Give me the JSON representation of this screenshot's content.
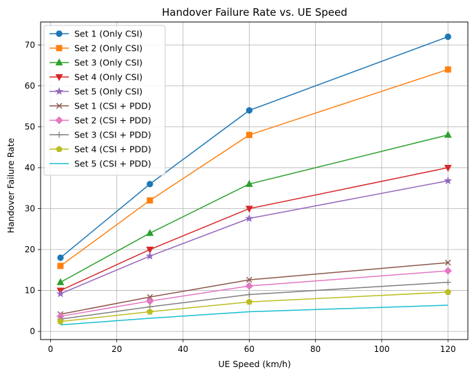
{
  "chart_data": {
    "type": "line",
    "title": "Handover Failure Rate vs. UE Speed",
    "xlabel": "UE Speed (km/h)",
    "ylabel": "Handover Failure Rate",
    "xlim": [
      -3,
      126
    ],
    "ylim": [
      -2,
      75.6
    ],
    "xticks": [
      0,
      20,
      40,
      60,
      80,
      100,
      120
    ],
    "yticks": [
      0,
      10,
      20,
      30,
      40,
      50,
      60,
      70
    ],
    "grid": true,
    "legend_position": "top-left",
    "x": [
      3,
      30,
      60,
      120
    ],
    "series": [
      {
        "name": "Set 1 (Only CSI)",
        "color": "#1f77b4",
        "marker": "circle",
        "values": [
          18,
          36,
          54,
          72
        ]
      },
      {
        "name": "Set 2 (Only CSI)",
        "color": "#ff7f0e",
        "marker": "square",
        "values": [
          16,
          32,
          48,
          64
        ]
      },
      {
        "name": "Set 3 (Only CSI)",
        "color": "#2ca02c",
        "marker": "triangle-up",
        "values": [
          12,
          24,
          36,
          48
        ]
      },
      {
        "name": "Set 4 (Only CSI)",
        "color": "#d62728",
        "marker": "triangle-down",
        "values": [
          10,
          20,
          30,
          40
        ]
      },
      {
        "name": "Set 5 (Only CSI)",
        "color": "#9467bd",
        "marker": "star",
        "values": [
          9.2,
          18.4,
          27.6,
          36.8
        ]
      },
      {
        "name": "Set 1 (CSI + PDD)",
        "color": "#8c564b",
        "marker": "x",
        "values": [
          4.2,
          8.4,
          12.6,
          16.8
        ]
      },
      {
        "name": "Set 2 (CSI + PDD)",
        "color": "#e377c2",
        "marker": "diamond",
        "values": [
          3.7,
          7.4,
          11.1,
          14.8
        ]
      },
      {
        "name": "Set 3 (CSI + PDD)",
        "color": "#7f7f7f",
        "marker": "plus",
        "values": [
          3.0,
          6.0,
          9.0,
          12.0
        ]
      },
      {
        "name": "Set 4 (CSI + PDD)",
        "color": "#bcbd22",
        "marker": "pentagon",
        "values": [
          2.4,
          4.8,
          7.2,
          9.6
        ]
      },
      {
        "name": "Set 5 (CSI + PDD)",
        "color": "#17becf",
        "marker": "none",
        "values": [
          1.6,
          3.2,
          4.8,
          6.4
        ]
      }
    ]
  }
}
